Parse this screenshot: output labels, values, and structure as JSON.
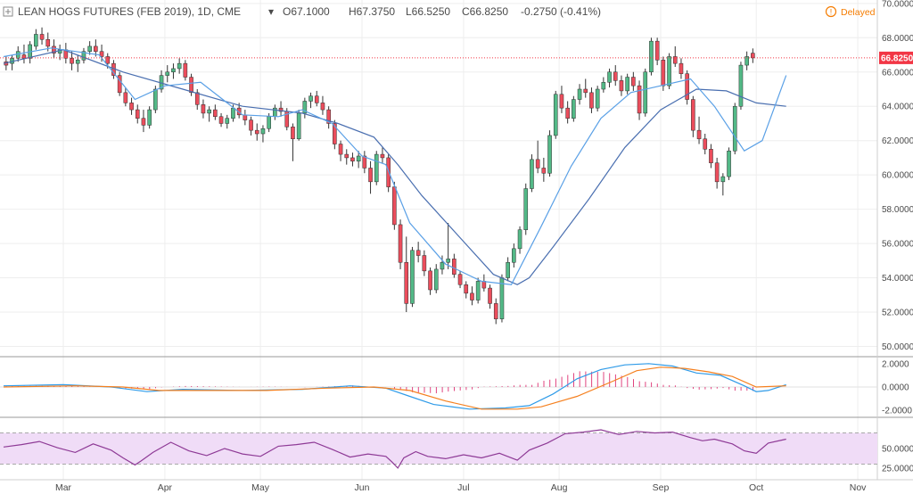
{
  "header": {
    "symbol": "LEAN HOGS FUTURES (FEB 2019), 1D, CME",
    "open": "O67.1000",
    "high": "H67.3750",
    "low": "L66.5250",
    "close": "C66.8250",
    "change": "-0.2750 (-0.41%)",
    "status": "Delayed"
  },
  "colors": {
    "up": "#53b987",
    "down": "#eb4d5c",
    "wick": "#333333",
    "ma_fast": "#5aa0e6",
    "ma_slow": "#4a6fb0",
    "macd": "#2f9be8",
    "signal": "#f5801f",
    "histogram": "#e0447f",
    "rsi": "#8e3a96",
    "rsi_band": "#f0dcf7",
    "price_tag": "#f23645",
    "status": "#f57c00"
  },
  "chart_data": [
    {
      "type": "candlestick",
      "price_axis": {
        "ylim": [
          49.4,
          70.2
        ],
        "ticks": [
          "70.0000",
          "68.0000",
          "66.0000",
          "64.0000",
          "62.0000",
          "60.0000",
          "58.0000",
          "56.0000",
          "54.0000",
          "52.0000",
          "50.0000"
        ]
      },
      "last_price": 66.825,
      "last_price_label": "66.8250",
      "months": [
        "Mar",
        "Apr",
        "May",
        "Jun",
        "Jul",
        "Aug",
        "Sep",
        "Oct",
        "Nov"
      ],
      "ohlc": [
        [
          66.6,
          66.9,
          66.1,
          66.4
        ],
        [
          66.5,
          67.0,
          66.1,
          66.8
        ],
        [
          66.8,
          67.5,
          66.6,
          67.2
        ],
        [
          67.0,
          67.6,
          66.5,
          66.8
        ],
        [
          66.8,
          67.8,
          66.5,
          67.6
        ],
        [
          67.5,
          68.5,
          67.3,
          68.2
        ],
        [
          68.2,
          68.6,
          67.6,
          67.9
        ],
        [
          67.9,
          68.3,
          67.2,
          67.5
        ],
        [
          67.5,
          67.9,
          66.8,
          67.1
        ],
        [
          67.1,
          67.6,
          66.7,
          67.3
        ],
        [
          67.3,
          67.7,
          66.5,
          66.8
        ],
        [
          66.8,
          67.2,
          66.1,
          66.5
        ],
        [
          66.5,
          67.0,
          66.0,
          66.7
        ],
        [
          66.7,
          67.4,
          66.5,
          67.2
        ],
        [
          67.2,
          67.8,
          67.0,
          67.5
        ],
        [
          67.5,
          67.9,
          66.9,
          67.2
        ],
        [
          67.2,
          67.6,
          66.6,
          66.9
        ],
        [
          66.9,
          67.1,
          66.2,
          66.5
        ],
        [
          66.5,
          66.7,
          65.6,
          65.8
        ],
        [
          65.8,
          66.0,
          64.6,
          64.8
        ],
        [
          64.8,
          65.1,
          64.0,
          64.2
        ],
        [
          64.2,
          64.5,
          63.5,
          63.8
        ],
        [
          63.8,
          64.1,
          63.0,
          63.3
        ],
        [
          63.3,
          63.8,
          62.5,
          62.9
        ],
        [
          62.9,
          64.0,
          62.7,
          63.8
        ],
        [
          63.8,
          65.2,
          63.6,
          65.0
        ],
        [
          65.0,
          66.1,
          64.8,
          65.8
        ],
        [
          65.8,
          66.4,
          65.4,
          66.0
        ],
        [
          66.0,
          66.5,
          65.6,
          66.2
        ],
        [
          66.2,
          66.8,
          65.9,
          66.5
        ],
        [
          66.5,
          66.7,
          65.5,
          65.7
        ],
        [
          65.7,
          65.9,
          64.6,
          64.8
        ],
        [
          64.8,
          65.0,
          63.8,
          64.1
        ],
        [
          64.1,
          64.4,
          63.3,
          63.6
        ],
        [
          63.6,
          64.0,
          63.1,
          63.8
        ],
        [
          63.8,
          64.1,
          63.2,
          63.4
        ],
        [
          63.4,
          63.6,
          62.8,
          63.0
        ],
        [
          63.0,
          63.5,
          62.7,
          63.3
        ],
        [
          63.3,
          64.1,
          63.1,
          63.9
        ],
        [
          63.9,
          64.2,
          63.3,
          63.5
        ],
        [
          63.5,
          63.8,
          62.9,
          63.2
        ],
        [
          63.2,
          63.4,
          62.3,
          62.6
        ],
        [
          62.6,
          63.0,
          62.0,
          62.4
        ],
        [
          62.4,
          62.9,
          61.9,
          62.7
        ],
        [
          62.7,
          63.6,
          62.5,
          63.4
        ],
        [
          63.4,
          64.1,
          63.2,
          63.9
        ],
        [
          63.9,
          64.3,
          63.4,
          63.7
        ],
        [
          63.7,
          63.9,
          62.6,
          62.8
        ],
        [
          62.8,
          63.0,
          60.8,
          62.1
        ],
        [
          62.1,
          63.8,
          62.0,
          63.6
        ],
        [
          63.6,
          64.5,
          63.3,
          64.3
        ],
        [
          64.3,
          64.8,
          63.9,
          64.6
        ],
        [
          64.6,
          64.9,
          64.0,
          64.2
        ],
        [
          64.2,
          64.6,
          63.5,
          63.8
        ],
        [
          63.8,
          64.0,
          62.7,
          63.0
        ],
        [
          63.0,
          63.2,
          61.5,
          61.8
        ],
        [
          61.8,
          62.0,
          60.8,
          61.2
        ],
        [
          61.2,
          61.5,
          60.6,
          61.0
        ],
        [
          61.0,
          61.3,
          60.5,
          60.8
        ],
        [
          60.8,
          61.4,
          60.4,
          61.1
        ],
        [
          61.1,
          61.4,
          60.1,
          60.4
        ],
        [
          60.4,
          60.8,
          58.9,
          59.6
        ],
        [
          59.6,
          61.4,
          59.4,
          61.2
        ],
        [
          61.2,
          61.6,
          60.7,
          61.0
        ],
        [
          61.0,
          61.2,
          59.0,
          59.3
        ],
        [
          59.3,
          59.6,
          56.8,
          57.1
        ],
        [
          57.1,
          57.4,
          54.5,
          54.9
        ],
        [
          54.9,
          56.4,
          52.0,
          52.5
        ],
        [
          52.5,
          55.8,
          52.3,
          55.6
        ],
        [
          55.6,
          56.1,
          54.9,
          55.3
        ],
        [
          55.3,
          55.6,
          54.1,
          54.4
        ],
        [
          54.4,
          54.6,
          53.0,
          53.3
        ],
        [
          53.3,
          54.8,
          53.1,
          54.5
        ],
        [
          54.5,
          55.3,
          54.2,
          54.9
        ],
        [
          54.9,
          57.2,
          54.5,
          55.1
        ],
        [
          55.1,
          55.4,
          54.0,
          54.2
        ],
        [
          54.2,
          54.4,
          53.4,
          53.6
        ],
        [
          53.6,
          53.8,
          52.8,
          53.1
        ],
        [
          53.1,
          53.5,
          52.4,
          52.7
        ],
        [
          52.7,
          54.0,
          52.5,
          53.8
        ],
        [
          53.8,
          54.2,
          53.2,
          53.4
        ],
        [
          53.4,
          53.6,
          52.2,
          52.5
        ],
        [
          52.5,
          52.8,
          51.3,
          51.6
        ],
        [
          51.6,
          54.2,
          51.4,
          54.0
        ],
        [
          54.0,
          55.2,
          53.8,
          54.9
        ],
        [
          54.9,
          56.0,
          54.6,
          55.7
        ],
        [
          55.7,
          57.0,
          55.4,
          56.8
        ],
        [
          56.8,
          59.5,
          56.5,
          59.2
        ],
        [
          59.2,
          61.2,
          59.0,
          60.9
        ],
        [
          60.9,
          62.0,
          60.1,
          60.4
        ],
        [
          60.4,
          61.0,
          59.6,
          60.1
        ],
        [
          60.1,
          62.6,
          59.9,
          62.3
        ],
        [
          62.3,
          64.9,
          62.1,
          64.7
        ],
        [
          64.7,
          65.2,
          63.6,
          63.9
        ],
        [
          63.9,
          64.3,
          63.0,
          63.3
        ],
        [
          63.3,
          64.6,
          63.1,
          64.4
        ],
        [
          64.4,
          65.3,
          64.1,
          65.0
        ],
        [
          65.0,
          65.6,
          64.5,
          64.8
        ],
        [
          64.8,
          65.1,
          63.6,
          63.9
        ],
        [
          63.9,
          65.2,
          63.7,
          65.0
        ],
        [
          65.0,
          65.7,
          64.8,
          65.4
        ],
        [
          65.4,
          66.2,
          65.1,
          66.0
        ],
        [
          66.0,
          66.4,
          65.2,
          65.5
        ],
        [
          65.5,
          65.8,
          64.6,
          64.9
        ],
        [
          64.9,
          65.9,
          64.7,
          65.7
        ],
        [
          65.7,
          66.0,
          64.9,
          65.2
        ],
        [
          65.2,
          65.5,
          63.2,
          63.6
        ],
        [
          63.6,
          66.2,
          63.4,
          66.0
        ],
        [
          66.0,
          68.0,
          65.8,
          67.8
        ],
        [
          67.8,
          68.0,
          66.4,
          66.7
        ],
        [
          66.7,
          66.9,
          64.9,
          65.2
        ],
        [
          65.2,
          67.1,
          65.0,
          66.9
        ],
        [
          66.9,
          67.5,
          66.3,
          66.5
        ],
        [
          66.5,
          66.8,
          65.6,
          65.9
        ],
        [
          65.9,
          66.1,
          64.1,
          64.4
        ],
        [
          64.4,
          64.6,
          62.2,
          62.6
        ],
        [
          62.6,
          63.4,
          61.8,
          62.1
        ],
        [
          62.1,
          62.4,
          61.2,
          61.5
        ],
        [
          61.5,
          61.8,
          60.4,
          60.7
        ],
        [
          60.7,
          61.0,
          59.2,
          59.6
        ],
        [
          59.6,
          60.1,
          58.8,
          59.9
        ],
        [
          59.9,
          61.6,
          59.7,
          61.4
        ],
        [
          61.4,
          64.2,
          61.2,
          64.0
        ],
        [
          64.0,
          66.6,
          63.8,
          66.4
        ],
        [
          66.4,
          67.2,
          66.1,
          66.9
        ],
        [
          67.1,
          67.375,
          66.525,
          66.825
        ]
      ],
      "ma_fast": [
        [
          0,
          66.9
        ],
        [
          8,
          67.4
        ],
        [
          16,
          67.0
        ],
        [
          22,
          64.4
        ],
        [
          27,
          65.2
        ],
        [
          33,
          65.4
        ],
        [
          40,
          63.5
        ],
        [
          46,
          63.4
        ],
        [
          50,
          63.8
        ],
        [
          55,
          63.0
        ],
        [
          60,
          61.1
        ],
        [
          64,
          60.6
        ],
        [
          68,
          57.2
        ],
        [
          74,
          54.8
        ],
        [
          80,
          53.8
        ],
        [
          85,
          53.6
        ],
        [
          90,
          57.0
        ],
        [
          95,
          60.5
        ],
        [
          100,
          63.3
        ],
        [
          105,
          64.8
        ],
        [
          110,
          65.2
        ],
        [
          115,
          65.6
        ],
        [
          119,
          64.0
        ],
        [
          124,
          61.4
        ],
        [
          127,
          62.0
        ],
        [
          131,
          65.8
        ]
      ],
      "ma_slow": [
        [
          0,
          66.5
        ],
        [
          10,
          67.3
        ],
        [
          20,
          66.0
        ],
        [
          30,
          65.0
        ],
        [
          40,
          64.0
        ],
        [
          50,
          63.6
        ],
        [
          56,
          63.0
        ],
        [
          62,
          62.2
        ],
        [
          66,
          60.6
        ],
        [
          70,
          58.8
        ],
        [
          76,
          56.5
        ],
        [
          82,
          54.2
        ],
        [
          86,
          53.6
        ],
        [
          88,
          54.0
        ],
        [
          92,
          55.8
        ],
        [
          98,
          58.6
        ],
        [
          104,
          61.6
        ],
        [
          110,
          63.8
        ],
        [
          116,
          65.0
        ],
        [
          121,
          64.9
        ],
        [
          126,
          64.2
        ],
        [
          131,
          64.0
        ]
      ],
      "macd_axis": {
        "ylim": [
          -2.6,
          2.6
        ],
        "ticks": [
          "2.0000",
          "0.0000",
          "-2.0000"
        ]
      },
      "macd": [
        [
          0,
          0.1
        ],
        [
          10,
          0.2
        ],
        [
          18,
          0.0
        ],
        [
          24,
          -0.4
        ],
        [
          30,
          -0.2
        ],
        [
          40,
          -0.3
        ],
        [
          50,
          -0.2
        ],
        [
          58,
          0.1
        ],
        [
          64,
          -0.1
        ],
        [
          68,
          -0.8
        ],
        [
          72,
          -1.5
        ],
        [
          78,
          -1.9
        ],
        [
          84,
          -1.8
        ],
        [
          88,
          -1.6
        ],
        [
          92,
          -0.6
        ],
        [
          96,
          0.7
        ],
        [
          100,
          1.5
        ],
        [
          104,
          1.9
        ],
        [
          108,
          2.0
        ],
        [
          112,
          1.8
        ],
        [
          116,
          1.2
        ],
        [
          120,
          1.0
        ],
        [
          124,
          0.1
        ],
        [
          126,
          -0.4
        ],
        [
          128,
          -0.3
        ],
        [
          131,
          0.2
        ]
      ],
      "signal": [
        [
          0,
          0.0
        ],
        [
          12,
          0.1
        ],
        [
          20,
          0.0
        ],
        [
          26,
          -0.3
        ],
        [
          34,
          -0.3
        ],
        [
          44,
          -0.3
        ],
        [
          54,
          -0.1
        ],
        [
          62,
          0.0
        ],
        [
          68,
          -0.3
        ],
        [
          74,
          -1.2
        ],
        [
          80,
          -1.9
        ],
        [
          86,
          -1.9
        ],
        [
          90,
          -1.7
        ],
        [
          96,
          -0.8
        ],
        [
          102,
          0.5
        ],
        [
          106,
          1.4
        ],
        [
          110,
          1.7
        ],
        [
          114,
          1.6
        ],
        [
          118,
          1.3
        ],
        [
          122,
          0.9
        ],
        [
          126,
          0.0
        ],
        [
          131,
          0.1
        ]
      ],
      "rsi_axis": {
        "ylim": [
          10,
          90
        ],
        "ticks": [
          "50.0000",
          "25.0000"
        ],
        "bands": [
          70,
          30
        ]
      },
      "rsi": [
        [
          0,
          52
        ],
        [
          3,
          55
        ],
        [
          6,
          59
        ],
        [
          9,
          51
        ],
        [
          12,
          45
        ],
        [
          15,
          56
        ],
        [
          18,
          48
        ],
        [
          20,
          38
        ],
        [
          22,
          29
        ],
        [
          23,
          34
        ],
        [
          25,
          45
        ],
        [
          28,
          58
        ],
        [
          31,
          47
        ],
        [
          34,
          41
        ],
        [
          37,
          50
        ],
        [
          40,
          43
        ],
        [
          43,
          40
        ],
        [
          46,
          53
        ],
        [
          49,
          55
        ],
        [
          52,
          58
        ],
        [
          55,
          49
        ],
        [
          58,
          39
        ],
        [
          61,
          43
        ],
        [
          64,
          40
        ],
        [
          65,
          33
        ],
        [
          66,
          25
        ],
        [
          67,
          38
        ],
        [
          69,
          46
        ],
        [
          71,
          40
        ],
        [
          74,
          37
        ],
        [
          77,
          42
        ],
        [
          80,
          38
        ],
        [
          83,
          44
        ],
        [
          86,
          35
        ],
        [
          88,
          48
        ],
        [
          91,
          57
        ],
        [
          94,
          69
        ],
        [
          97,
          71
        ],
        [
          100,
          74
        ],
        [
          103,
          68
        ],
        [
          106,
          72
        ],
        [
          109,
          70
        ],
        [
          112,
          71
        ],
        [
          115,
          64
        ],
        [
          117,
          60
        ],
        [
          119,
          62
        ],
        [
          122,
          56
        ],
        [
          124,
          47
        ],
        [
          126,
          44
        ],
        [
          128,
          57
        ],
        [
          131,
          62
        ]
      ]
    }
  ]
}
